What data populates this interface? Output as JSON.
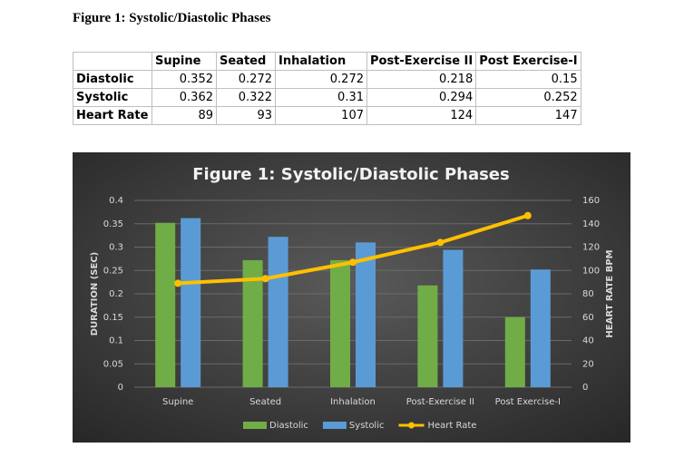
{
  "heading": "Figure 1: Systolic/Diastolic Phases",
  "table": {
    "header": [
      "Supine",
      "Seated",
      "Inhalation",
      "Post-Exercise II",
      "Post Exercise-I"
    ],
    "rows": [
      {
        "label": "Diastolic",
        "values": [
          0.352,
          0.272,
          0.272,
          0.218,
          0.15
        ]
      },
      {
        "label": "Systolic",
        "values": [
          0.362,
          0.322,
          0.31,
          0.294,
          0.252
        ]
      },
      {
        "label": "Heart Rate",
        "values": [
          89,
          93,
          107,
          124,
          147
        ]
      }
    ]
  },
  "chart_data": {
    "type": "bar",
    "title": "Figure 1: Systolic/Diastolic Phases",
    "y_label": "DURATION (SEC)",
    "y2_label": "HEART RATE BPM",
    "categories": [
      "Supine",
      "Seated",
      "Inhalation",
      "Post-Exercise II",
      "Post Exercise-I"
    ],
    "series": [
      {
        "name": "Diastolic",
        "color": "#70ad47",
        "values": [
          0.352,
          0.272,
          0.272,
          0.218,
          0.15
        ]
      },
      {
        "name": "Systolic",
        "color": "#5b9bd5",
        "values": [
          0.362,
          0.322,
          0.31,
          0.294,
          0.252
        ]
      },
      {
        "name": "Heart Rate",
        "color": "#ffc000",
        "type": "line",
        "axis": "y2",
        "values": [
          89,
          93,
          107,
          124,
          147
        ]
      }
    ],
    "ylim": [
      0,
      0.4
    ],
    "yticks": [
      0,
      0.05,
      0.1,
      0.15,
      0.2,
      0.25,
      0.3,
      0.35,
      0.4
    ],
    "y2lim": [
      0,
      160
    ],
    "y2ticks": [
      0,
      20,
      40,
      60,
      80,
      100,
      120,
      140,
      160
    ],
    "grid": true,
    "legend": "bottom"
  }
}
